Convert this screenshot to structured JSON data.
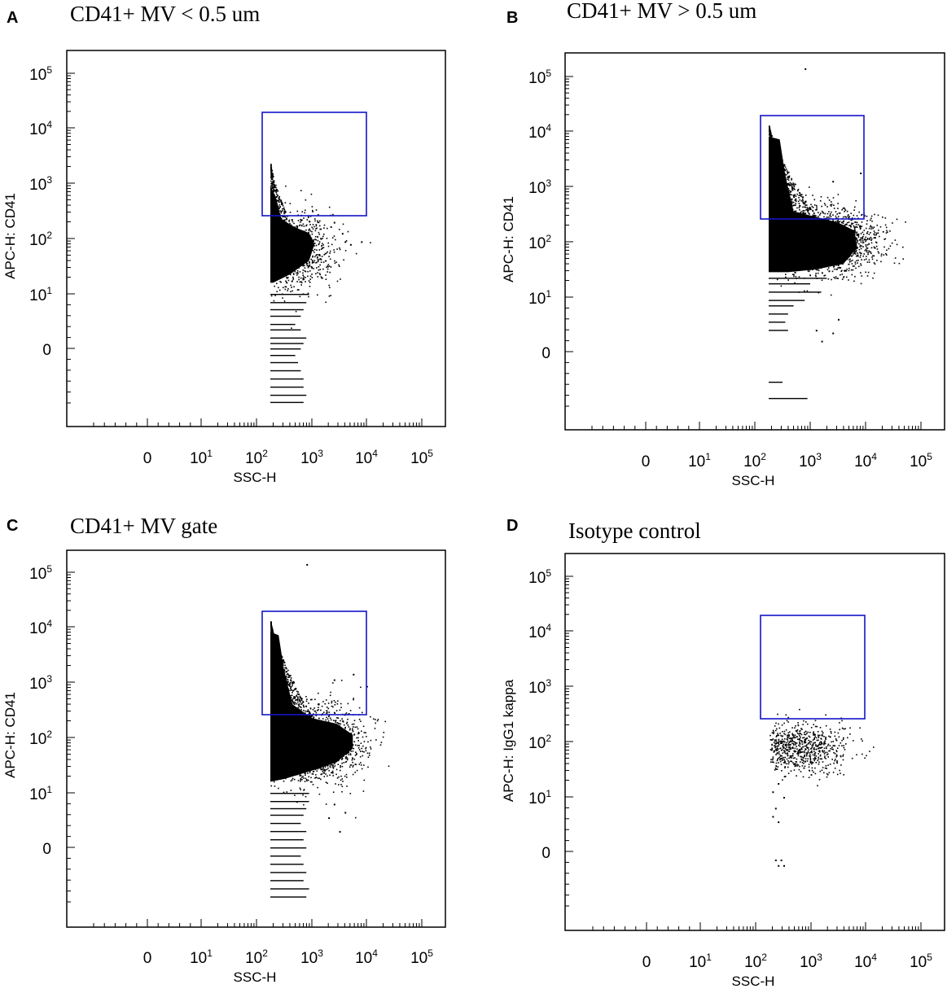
{
  "figure": {
    "shared": {
      "xlabel": "SSC-H",
      "x_ticks": [
        {
          "base": "0",
          "exp": ""
        },
        {
          "base": "10",
          "exp": "1"
        },
        {
          "base": "10",
          "exp": "2"
        },
        {
          "base": "10",
          "exp": "3"
        },
        {
          "base": "10",
          "exp": "4"
        },
        {
          "base": "10",
          "exp": "5"
        }
      ],
      "y_ticks": [
        {
          "base": "0",
          "exp": ""
        },
        {
          "base": "10",
          "exp": "1"
        },
        {
          "base": "10",
          "exp": "2"
        },
        {
          "base": "10",
          "exp": "3"
        },
        {
          "base": "10",
          "exp": "4"
        },
        {
          "base": "10",
          "exp": "5"
        }
      ],
      "colors": {
        "gate": "#1414c8",
        "points": "#000000",
        "frame": "#000000"
      }
    },
    "panels": [
      {
        "letter": "A",
        "title": "CD41+ MV < 0.5 um",
        "ylabel": "APC-H: CD41"
      },
      {
        "letter": "B",
        "title": "CD41+ MV > 0.5 um",
        "ylabel": "APC-H: CD41"
      },
      {
        "letter": "C",
        "title": "CD41+ MV gate",
        "ylabel": "APC-H: CD41"
      },
      {
        "letter": "D",
        "title": "Isotype control",
        "ylabel": "APC-H: IgG1 kappa"
      }
    ]
  },
  "chart_data": [
    {
      "type": "scatter",
      "panel": "A",
      "title": "CD41+ MV < 0.5 um",
      "xlabel": "SSC-H",
      "ylabel": "APC-H: CD41",
      "scale": "biexponential",
      "xlim": [
        "-10^1",
        "10^5.2"
      ],
      "ylim": [
        "-10^1",
        "10^5.2"
      ],
      "gate": {
        "x": [
          140,
          9000
        ],
        "y": [
          230,
          18000
        ]
      },
      "population": {
        "x_range": [
          220,
          8000
        ],
        "y_range": [
          0,
          3500
        ],
        "x_center": 400,
        "y_center": 60
      }
    },
    {
      "type": "scatter",
      "panel": "B",
      "title": "CD41+ MV > 0.5 um",
      "xlabel": "SSC-H",
      "ylabel": "APC-H: CD41",
      "scale": "biexponential",
      "xlim": [
        "-10^1",
        "10^5.2"
      ],
      "ylim": [
        "-10^1",
        "10^5.2"
      ],
      "gate": {
        "x": [
          140,
          9000
        ],
        "y": [
          230,
          18000
        ]
      },
      "population": {
        "x_range": [
          220,
          7000
        ],
        "y_range": [
          0,
          12000
        ],
        "x_center": 800,
        "y_center": 100
      }
    },
    {
      "type": "scatter",
      "panel": "C",
      "title": "CD41+ MV gate",
      "xlabel": "SSC-H",
      "ylabel": "APC-H: CD41",
      "scale": "biexponential",
      "xlim": [
        "-10^1",
        "10^5.2"
      ],
      "ylim": [
        "-10^1",
        "10^5.2"
      ],
      "gate": {
        "x": [
          140,
          9000
        ],
        "y": [
          230,
          18000
        ]
      },
      "population": {
        "x_range": [
          220,
          8000
        ],
        "y_range": [
          0,
          12000
        ],
        "x_center": 600,
        "y_center": 80
      }
    },
    {
      "type": "scatter",
      "panel": "D",
      "title": "Isotype control",
      "xlabel": "SSC-H",
      "ylabel": "APC-H: IgG1 kappa",
      "scale": "biexponential",
      "xlim": [
        "-10^1",
        "10^5.2"
      ],
      "ylim": [
        "-10^1",
        "10^5.2"
      ],
      "gate": {
        "x": [
          140,
          9000
        ],
        "y": [
          230,
          18000
        ]
      },
      "population": {
        "x_range": [
          220,
          6000
        ],
        "y_range": [
          0,
          250
        ],
        "x_center": 500,
        "y_center": 90
      }
    }
  ]
}
